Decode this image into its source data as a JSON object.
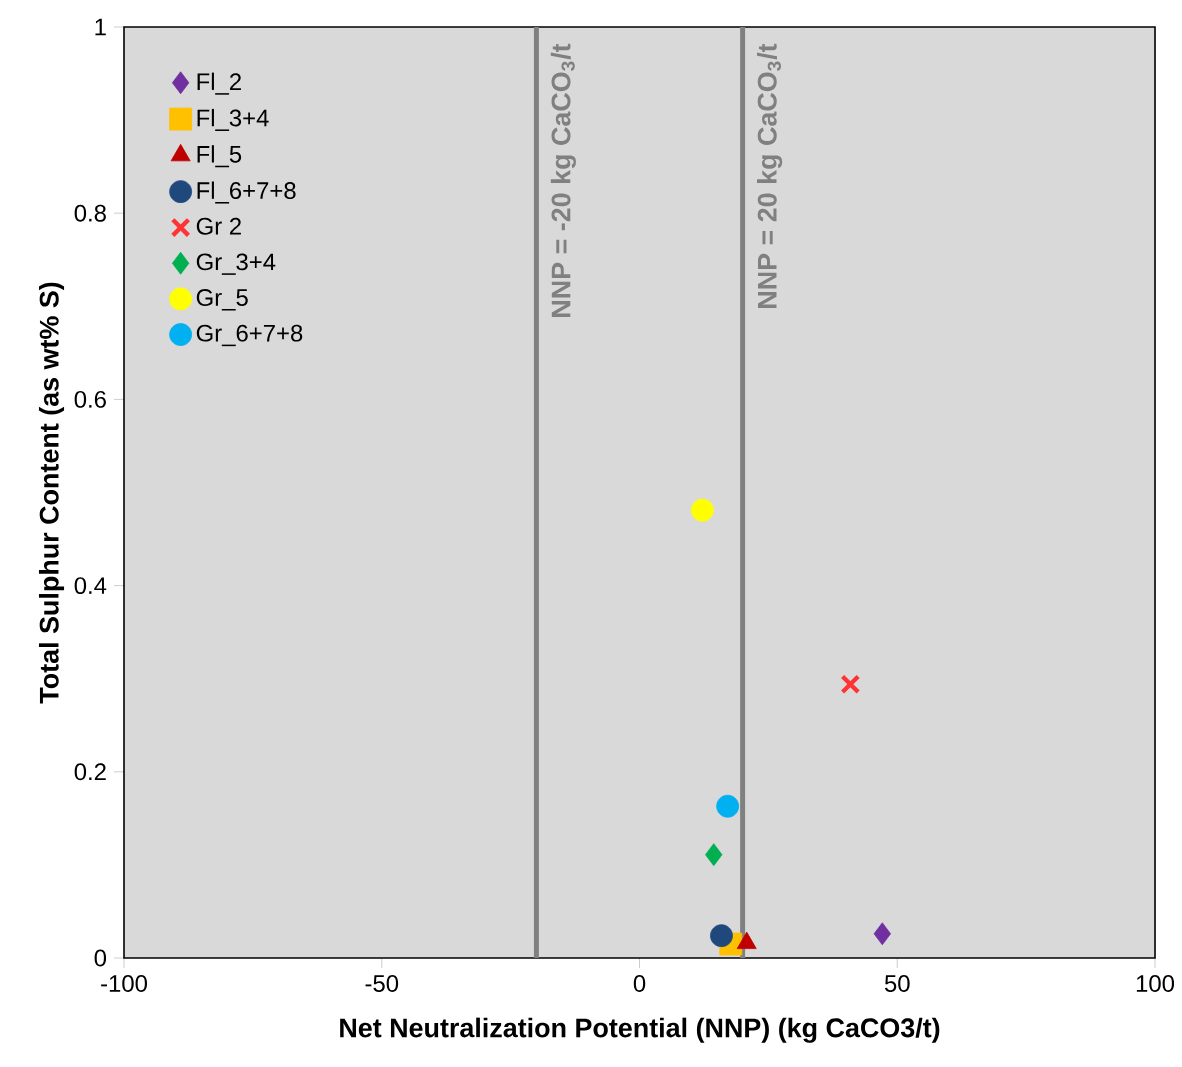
{
  "chart_data": {
    "type": "scatter",
    "xlabel": "Net Neutralization Potential (NNP) (kg CaCO3/t)",
    "ylabel": "Total Sulphur Content (as wt% S)",
    "xlim": [
      -100,
      100
    ],
    "xticks": [
      -100,
      -50,
      0,
      50,
      100
    ],
    "ylim": [
      0,
      1
    ],
    "yticks": [
      0,
      0.2,
      0.4,
      0.6,
      0.8,
      1
    ],
    "grid": false,
    "legend": "top left",
    "ref_lines": [
      {
        "axis": "x",
        "value": -20,
        "label": "NNP = -20 kg CaCO$_{3}$/t",
        "color": "#808080"
      },
      {
        "axis": "x",
        "value": 20,
        "label": "NNP = 20 kg CaCO$_{3}$/t",
        "color": "#808080"
      }
    ],
    "series": [
      {
        "name": "Fl_2",
        "color": "#7030a0",
        "marker": "diamond",
        "x": [
          47.1
        ],
        "values": [
          0.026
        ]
      },
      {
        "name": "Fl_3+4",
        "color": "#ffc000",
        "marker": "square",
        "x": [
          17.7
        ],
        "values": [
          0.015
        ]
      },
      {
        "name": "Fl_5",
        "color": "#c00000",
        "marker": "triangle",
        "x": [
          20.8
        ],
        "values": [
          0.016
        ]
      },
      {
        "name": "Fl_6+7+8",
        "color": "#1f497d",
        "marker": "circle",
        "x": [
          15.9
        ],
        "values": [
          0.024
        ]
      },
      {
        "name": "Gr 2",
        "color": "#ff3333",
        "marker": "cross",
        "x": [
          40.9
        ],
        "values": [
          0.294
        ]
      },
      {
        "name": "Gr_3+4",
        "color": "#00b050",
        "marker": "diamond",
        "x": [
          14.4
        ],
        "values": [
          0.111
        ]
      },
      {
        "name": "Gr_5",
        "color": "#ffff00",
        "marker": "circle",
        "x": [
          12.2
        ],
        "values": [
          0.481
        ]
      },
      {
        "name": "Gr_6+7+8",
        "color": "#00b0f0",
        "marker": "circle",
        "x": [
          17.1
        ],
        "values": [
          0.163
        ]
      }
    ]
  }
}
